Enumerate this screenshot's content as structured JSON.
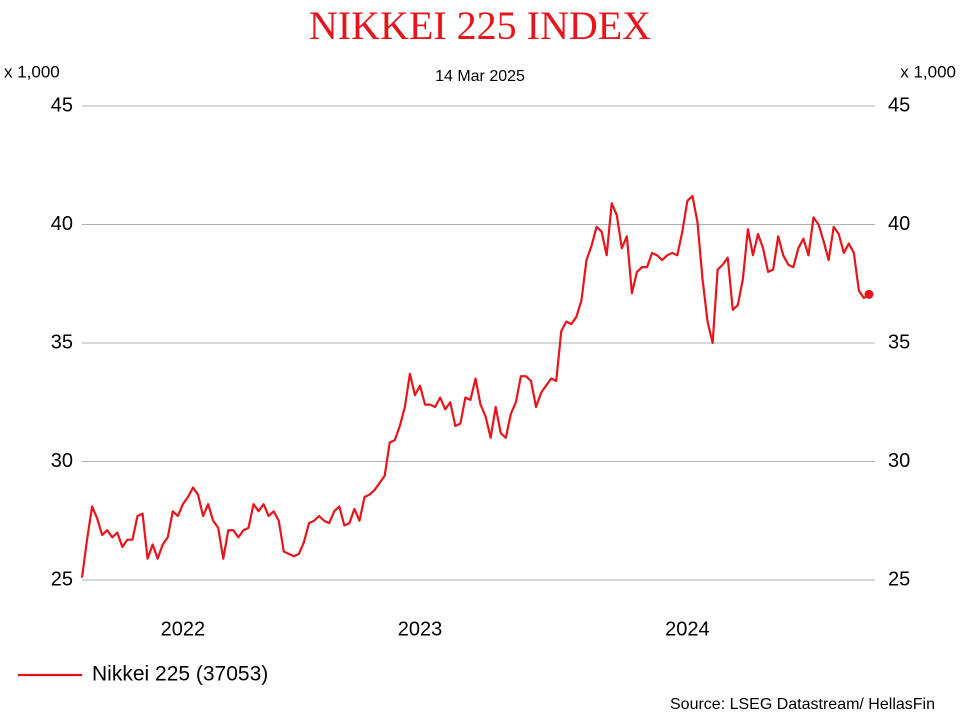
{
  "chart_data": {
    "type": "line",
    "title": "NIKKEI 225 INDEX",
    "subtitle": "14 Mar 2025",
    "y_label": "x 1,000",
    "y2_label": "x 1,000",
    "source": "Source: LSEG Datastream/ HellasFin",
    "categories": [
      null,
      null,
      null,
      null,
      null,
      null,
      null,
      null,
      null,
      null,
      null,
      null,
      null,
      null,
      null,
      null,
      null,
      null,
      null,
      null,
      "2022",
      null,
      null,
      null,
      null,
      null,
      null,
      null,
      null,
      null,
      null,
      null,
      null,
      null,
      null,
      null,
      null,
      null,
      null,
      null,
      null,
      null,
      null,
      null,
      null,
      null,
      null,
      null,
      null,
      null,
      null,
      null,
      null,
      null,
      null,
      null,
      null,
      null,
      null,
      null,
      null,
      null,
      null,
      null,
      null,
      null,
      null,
      "2023",
      null,
      null,
      null,
      null,
      null,
      null,
      null,
      null,
      null,
      null,
      null,
      null,
      null,
      null,
      null,
      null,
      null,
      null,
      null,
      null,
      null,
      null,
      null,
      null,
      null,
      null,
      null,
      null,
      null,
      null,
      null,
      null,
      null,
      null,
      null,
      null,
      null,
      null,
      null,
      null,
      null,
      null,
      null,
      null,
      null,
      null,
      null,
      null,
      null,
      null,
      null,
      null,
      "2024",
      null,
      null,
      null,
      null,
      null,
      null,
      null,
      null,
      null,
      null,
      null,
      null,
      null,
      null,
      null,
      null,
      null,
      null,
      null,
      null,
      null,
      null,
      null,
      null,
      null,
      null,
      null,
      null,
      null,
      null,
      null,
      null,
      null,
      null,
      null,
      null
    ],
    "series": [
      {
        "name": "Nikkei 225 (37053)",
        "color": "#e8141b",
        "values": [
          25.1,
          26.7,
          28.1,
          27.6,
          26.9,
          27.1,
          26.8,
          27.0,
          26.4,
          26.7,
          26.7,
          27.7,
          27.8,
          25.9,
          26.5,
          25.9,
          26.5,
          26.8,
          27.9,
          27.7,
          28.2,
          28.5,
          28.9,
          28.6,
          27.7,
          28.2,
          27.5,
          27.2,
          25.9,
          27.1,
          27.1,
          26.8,
          27.1,
          27.2,
          28.2,
          27.9,
          28.2,
          27.7,
          27.9,
          27.5,
          26.2,
          26.1,
          26.0,
          26.1,
          26.6,
          27.4,
          27.5,
          27.7,
          27.5,
          27.4,
          27.9,
          28.1,
          27.3,
          27.4,
          28.0,
          27.5,
          28.5,
          28.6,
          28.8,
          29.1,
          29.4,
          30.8,
          30.9,
          31.5,
          32.3,
          33.7,
          32.8,
          33.2,
          32.4,
          32.4,
          32.3,
          32.7,
          32.2,
          32.5,
          31.5,
          31.6,
          32.7,
          32.6,
          33.5,
          32.4,
          31.9,
          31.0,
          32.3,
          31.2,
          31.0,
          32.0,
          32.5,
          33.6,
          33.6,
          33.4,
          32.3,
          32.9,
          33.2,
          33.5,
          33.4,
          35.5,
          35.9,
          35.8,
          36.1,
          36.8,
          38.5,
          39.1,
          39.9,
          39.7,
          38.7,
          40.9,
          40.4,
          39.0,
          39.5,
          37.1,
          38.0,
          38.2,
          38.2,
          38.8,
          38.7,
          38.5,
          38.7,
          38.8,
          38.7,
          39.7,
          41.0,
          41.2,
          40.1,
          37.7,
          35.9,
          35.0,
          38.1,
          38.3,
          38.6,
          36.4,
          36.6,
          37.7,
          39.8,
          38.7,
          39.6,
          39.0,
          38.0,
          38.1,
          39.5,
          38.7,
          38.3,
          38.2,
          39.0,
          39.4,
          38.7,
          40.3,
          40.0,
          39.3,
          38.5,
          39.9,
          39.6,
          38.8,
          39.2,
          38.8,
          37.2,
          36.9,
          37.053
        ]
      }
    ],
    "ylim": [
      25,
      45
    ],
    "yticks": [
      25,
      30,
      35,
      40,
      45
    ],
    "y2lim": [
      25,
      45
    ],
    "y2ticks": [
      25,
      30,
      35,
      40,
      45
    ],
    "grid": true,
    "legend": "bottom-left",
    "end_marker": true
  }
}
